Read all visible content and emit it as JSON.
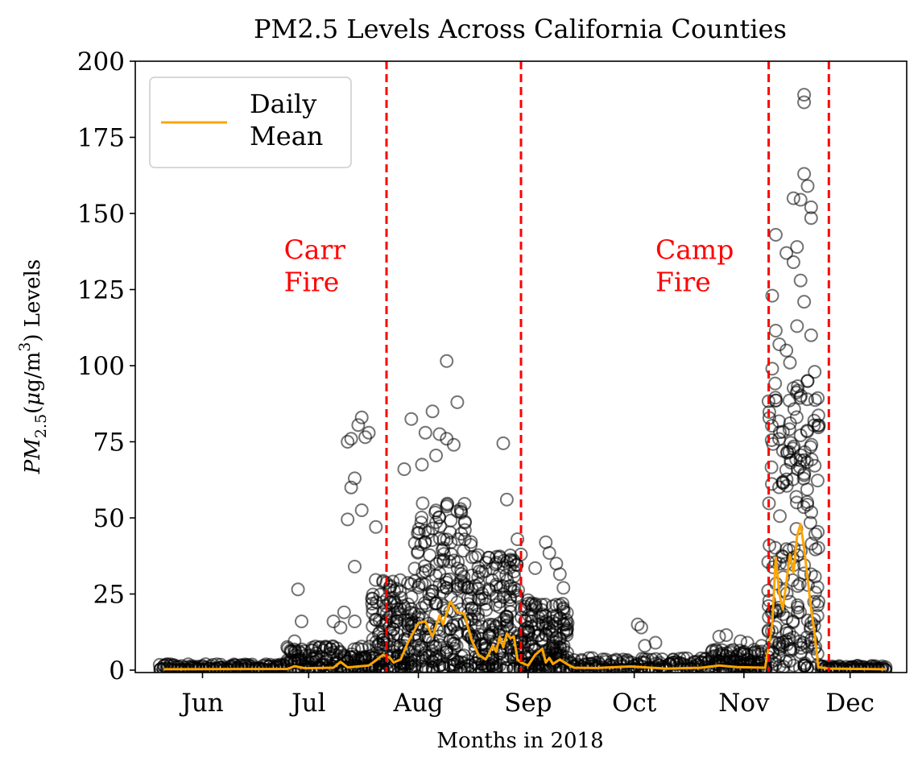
{
  "chart_data": {
    "type": "scatter",
    "title": "PM2.5 Levels Across California Counties",
    "xlabel": "Months in 2018",
    "ylabel": {
      "base": "PM",
      "subscript": "2.5",
      "unit_open": "(",
      "mu": "μ",
      "unit_mid": "g/m",
      "superscript": "3",
      "unit_close": ")",
      "suffix": " Levels"
    },
    "xlim": [
      "2018-05-13",
      "2018-12-17"
    ],
    "ylim": [
      0,
      200
    ],
    "yticks": [
      0,
      25,
      50,
      75,
      100,
      125,
      150,
      175,
      200
    ],
    "xticks": [
      {
        "date": "2018-06-01",
        "label": "Jun"
      },
      {
        "date": "2018-07-01",
        "label": "Jul"
      },
      {
        "date": "2018-08-01",
        "label": "Aug"
      },
      {
        "date": "2018-09-01",
        "label": "Sep"
      },
      {
        "date": "2018-10-01",
        "label": "Oct"
      },
      {
        "date": "2018-11-01",
        "label": "Nov"
      },
      {
        "date": "2018-12-01",
        "label": "Dec"
      }
    ],
    "legend": {
      "placement": "upper-left",
      "entries": [
        {
          "label": "Daily\nMean",
          "color": "#ffa500"
        }
      ]
    },
    "vlines": {
      "color": "#ff0000",
      "style": "dashed",
      "dates": [
        "2018-07-23",
        "2018-08-30",
        "2018-11-08",
        "2018-11-25"
      ]
    },
    "annotations": [
      {
        "text": "Carr\nFire",
        "color": "#ff0000",
        "x": "2018-06-24",
        "y": 135
      },
      {
        "text": "Camp\nFire",
        "color": "#ff0000",
        "x": "2018-10-07",
        "y": 135
      }
    ],
    "series": [
      {
        "type": "line",
        "color": "#ffa500",
        "points": [
          [
            "2018-05-21",
            0.3
          ],
          [
            "2018-06-25",
            0.4
          ],
          [
            "2018-06-27",
            1.3
          ],
          [
            "2018-06-30",
            0.6
          ],
          [
            "2018-07-08",
            0.8
          ],
          [
            "2018-07-10",
            2.7
          ],
          [
            "2018-07-12",
            0.9
          ],
          [
            "2018-07-18",
            1.5
          ],
          [
            "2018-07-20",
            3.2
          ],
          [
            "2018-07-22",
            5.0
          ],
          [
            "2018-07-24",
            4.0
          ],
          [
            "2018-07-25",
            2.5
          ],
          [
            "2018-07-27",
            3.5
          ],
          [
            "2018-07-29",
            9.0
          ],
          [
            "2018-08-01",
            15.5
          ],
          [
            "2018-08-03",
            16.0
          ],
          [
            "2018-08-05",
            11.0
          ],
          [
            "2018-08-07",
            18.0
          ],
          [
            "2018-08-08",
            15.0
          ],
          [
            "2018-08-10",
            22.5
          ],
          [
            "2018-08-12",
            19.0
          ],
          [
            "2018-08-14",
            18.5
          ],
          [
            "2018-08-16",
            10.0
          ],
          [
            "2018-08-18",
            5.0
          ],
          [
            "2018-08-20",
            3.5
          ],
          [
            "2018-08-21",
            5.5
          ],
          [
            "2018-08-22",
            8.0
          ],
          [
            "2018-08-23",
            6.0
          ],
          [
            "2018-08-24",
            11.0
          ],
          [
            "2018-08-25",
            7.5
          ],
          [
            "2018-08-26",
            12.0
          ],
          [
            "2018-08-27",
            10.5
          ],
          [
            "2018-08-28",
            11.0
          ],
          [
            "2018-08-29",
            3.5
          ],
          [
            "2018-08-30",
            2.5
          ],
          [
            "2018-09-01",
            1.5
          ],
          [
            "2018-09-03",
            5.0
          ],
          [
            "2018-09-05",
            7.0
          ],
          [
            "2018-09-06",
            2.5
          ],
          [
            "2018-09-07",
            4.0
          ],
          [
            "2018-09-08",
            2.0
          ],
          [
            "2018-09-10",
            3.5
          ],
          [
            "2018-09-12",
            2.0
          ],
          [
            "2018-09-14",
            0.8
          ],
          [
            "2018-09-20",
            0.7
          ],
          [
            "2018-09-30",
            1.2
          ],
          [
            "2018-10-10",
            0.5
          ],
          [
            "2018-10-20",
            0.8
          ],
          [
            "2018-10-25",
            1.5
          ],
          [
            "2018-10-30",
            1.0
          ],
          [
            "2018-11-07",
            0.8
          ],
          [
            "2018-11-09",
            15.0
          ],
          [
            "2018-11-10",
            37.0
          ],
          [
            "2018-11-11",
            25.0
          ],
          [
            "2018-11-12",
            20.0
          ],
          [
            "2018-11-14",
            38.0
          ],
          [
            "2018-11-15",
            32.0
          ],
          [
            "2018-11-16",
            44.0
          ],
          [
            "2018-11-17",
            48.0
          ],
          [
            "2018-11-18",
            40.0
          ],
          [
            "2018-11-19",
            30.0
          ],
          [
            "2018-11-20",
            20.0
          ],
          [
            "2018-11-21",
            12.0
          ],
          [
            "2018-11-22",
            1.0
          ],
          [
            "2018-11-25",
            0.5
          ],
          [
            "2018-12-11",
            0.3
          ]
        ]
      },
      {
        "type": "scatter",
        "marker": "open-circle",
        "color": "#000000",
        "outlier_points": [
          [
            "2018-06-28",
            26.5
          ],
          [
            "2018-06-29",
            16.0
          ],
          [
            "2018-06-27",
            9.5
          ],
          [
            "2018-07-11",
            19.0
          ],
          [
            "2018-07-08",
            16.0
          ],
          [
            "2018-07-10",
            14.0
          ],
          [
            "2018-07-14",
            16.0
          ],
          [
            "2018-07-13",
            76.0
          ],
          [
            "2018-07-15",
            80.5
          ],
          [
            "2018-07-16",
            83.0
          ],
          [
            "2018-07-17",
            76.5
          ],
          [
            "2018-07-12",
            75.0
          ],
          [
            "2018-07-14",
            63.0
          ],
          [
            "2018-07-16",
            52.5
          ],
          [
            "2018-07-12",
            49.5
          ],
          [
            "2018-07-13",
            60.0
          ],
          [
            "2018-07-18",
            78.0
          ],
          [
            "2018-07-14",
            34.0
          ],
          [
            "2018-07-20",
            47.0
          ],
          [
            "2018-08-09",
            101.5
          ],
          [
            "2018-08-12",
            88.0
          ],
          [
            "2018-07-30",
            82.5
          ],
          [
            "2018-08-05",
            85.0
          ],
          [
            "2018-08-03",
            78.0
          ],
          [
            "2018-08-07",
            77.5
          ],
          [
            "2018-08-09",
            76.0
          ],
          [
            "2018-08-11",
            74.0
          ],
          [
            "2018-07-28",
            66.0
          ],
          [
            "2018-08-02",
            67.5
          ],
          [
            "2018-08-06",
            70.5
          ],
          [
            "2018-08-25",
            74.5
          ],
          [
            "2018-08-26",
            56.0
          ],
          [
            "2018-08-29",
            43.0
          ],
          [
            "2018-08-30",
            38.0
          ],
          [
            "2018-09-06",
            42.0
          ],
          [
            "2018-09-07",
            38.5
          ],
          [
            "2018-09-09",
            35.0
          ],
          [
            "2018-09-10",
            31.5
          ],
          [
            "2018-09-03",
            33.5
          ],
          [
            "2018-09-11",
            27.0
          ],
          [
            "2018-09-01",
            23.0
          ],
          [
            "2018-10-02",
            15.0
          ],
          [
            "2018-10-03",
            14.0
          ],
          [
            "2018-10-04",
            8.0
          ],
          [
            "2018-10-07",
            9.0
          ],
          [
            "2018-10-25",
            11.0
          ],
          [
            "2018-10-27",
            11.5
          ],
          [
            "2018-10-31",
            9.5
          ],
          [
            "2018-11-02",
            9.0
          ],
          [
            "2018-11-06",
            8.0
          ],
          [
            "2018-11-18",
            189.0
          ],
          [
            "2018-11-18",
            186.5
          ],
          [
            "2018-11-18",
            163.0
          ],
          [
            "2018-11-19",
            159.0
          ],
          [
            "2018-11-15",
            155.0
          ],
          [
            "2018-11-17",
            154.5
          ],
          [
            "2018-11-20",
            152.0
          ],
          [
            "2018-11-20",
            148.5
          ],
          [
            "2018-11-10",
            143.0
          ],
          [
            "2018-11-13",
            137.0
          ],
          [
            "2018-11-16",
            139.0
          ],
          [
            "2018-11-15",
            134.0
          ],
          [
            "2018-11-09",
            123.0
          ],
          [
            "2018-11-10",
            111.5
          ],
          [
            "2018-11-17",
            128.0
          ],
          [
            "2018-11-18",
            121.0
          ],
          [
            "2018-11-11",
            107.0
          ],
          [
            "2018-11-13",
            105.0
          ],
          [
            "2018-11-14",
            101.0
          ],
          [
            "2018-11-09",
            99.0
          ],
          [
            "2018-11-20",
            110.0
          ],
          [
            "2018-11-21",
            98.0
          ],
          [
            "2018-11-16",
            113.0
          ],
          [
            "2018-11-19",
            95.0
          ]
        ],
        "dense_ranges": [
          {
            "start": "2018-05-20",
            "end": "2018-06-24",
            "max": 2
          },
          {
            "start": "2018-06-25",
            "end": "2018-07-18",
            "max": 8
          },
          {
            "start": "2018-07-19",
            "end": "2018-07-30",
            "max": 30
          },
          {
            "start": "2018-07-31",
            "end": "2018-08-16",
            "max": 55
          },
          {
            "start": "2018-08-17",
            "end": "2018-08-29",
            "max": 38
          },
          {
            "start": "2018-08-30",
            "end": "2018-09-12",
            "max": 22
          },
          {
            "start": "2018-09-13",
            "end": "2018-10-22",
            "max": 4
          },
          {
            "start": "2018-10-23",
            "end": "2018-11-07",
            "max": 7
          },
          {
            "start": "2018-11-08",
            "end": "2018-11-22",
            "max": 95
          },
          {
            "start": "2018-11-23",
            "end": "2018-12-11",
            "max": 1.5
          }
        ]
      }
    ]
  }
}
